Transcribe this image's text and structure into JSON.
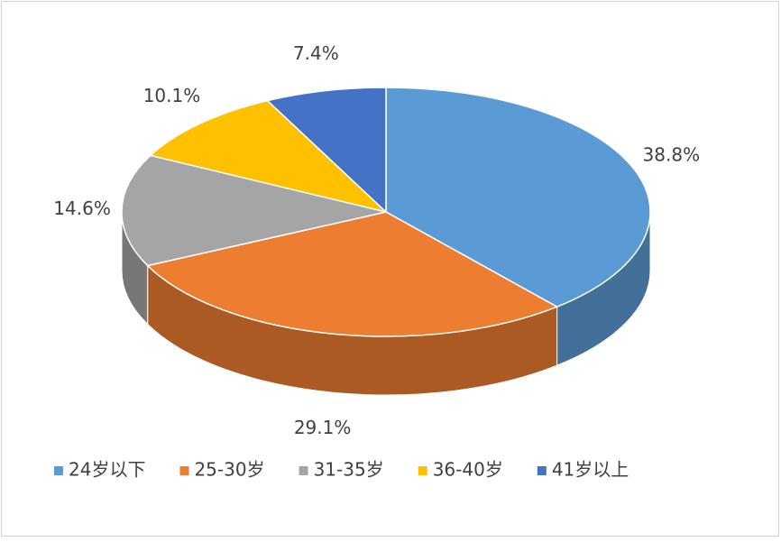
{
  "chart_data": {
    "type": "pie",
    "categories": [
      "24岁以下",
      "25-30岁",
      "31-35岁",
      "36-40岁",
      "41岁以上"
    ],
    "values": [
      38.8,
      29.1,
      14.6,
      10.1,
      7.4
    ],
    "value_labels": [
      "38.8%",
      "29.1%",
      "14.6%",
      "10.1%",
      "7.4%"
    ],
    "colors": [
      "#5b9bd5",
      "#ed7d31",
      "#a5a5a5",
      "#ffc000",
      "#4472c4"
    ],
    "legend": "bottom"
  }
}
